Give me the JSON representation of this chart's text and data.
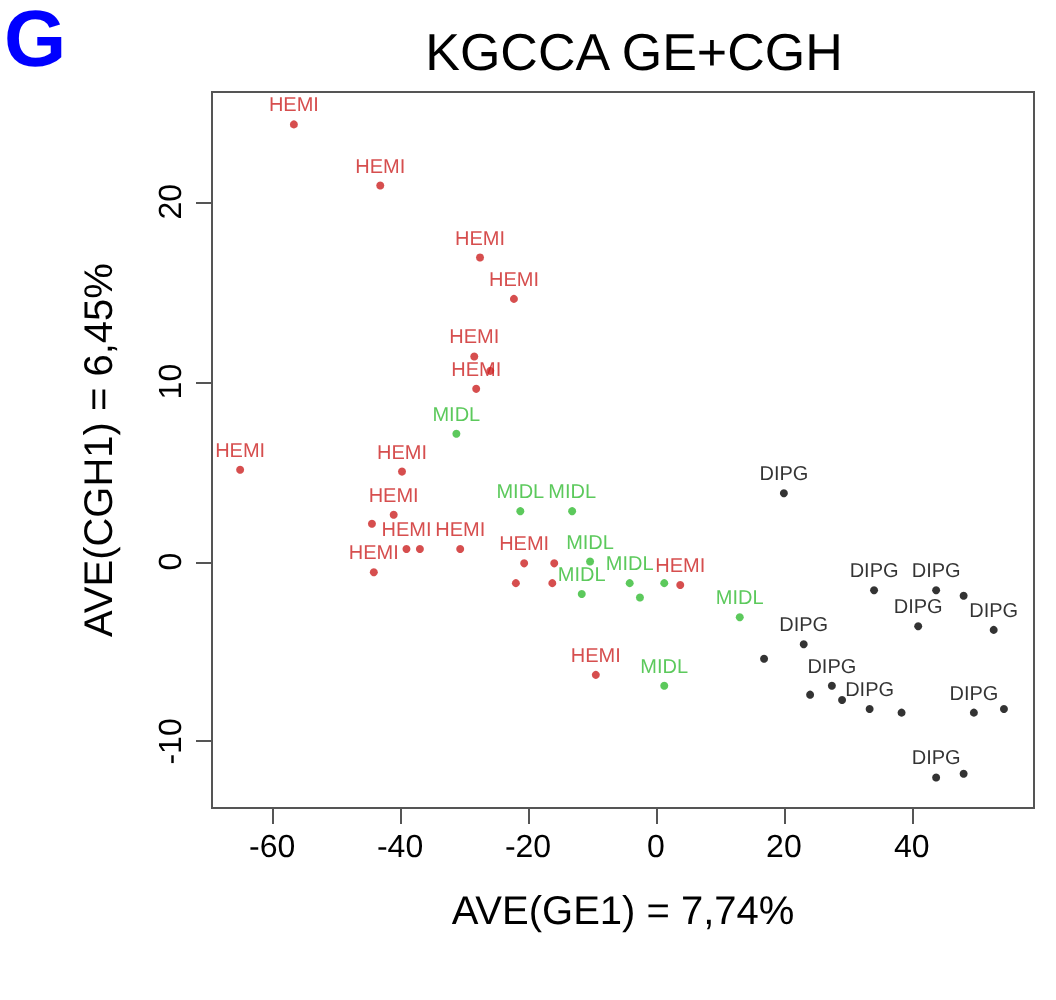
{
  "chart_data": {
    "type": "scatter",
    "title": "KGCCA GE+CGH",
    "xlabel": "AVE(GE1) = 7,74%",
    "ylabel": "AVE(CGH1) = 6,45%",
    "annotations": [
      "G"
    ],
    "xlim": [
      -69.4,
      59.1
    ],
    "xticks": [
      -60,
      -40,
      -20,
      0,
      20,
      40
    ],
    "ylim": [
      -13.7,
      26.1
    ],
    "yticks": [
      -10,
      0,
      10,
      20
    ],
    "grid": false,
    "legend": false,
    "marker": "circle",
    "series": [
      {
        "name": "HEMI",
        "color": "#cc2222",
        "x": [
          -56.6,
          -43.1,
          -27.5,
          -22.2,
          -28.4,
          -25.9,
          -28.1,
          -65,
          -39.7,
          -41,
          -44.4,
          -39,
          -36.9,
          -30.6,
          -44.1,
          -20.6,
          -15.9,
          -21.9,
          -16.2,
          3.8,
          -9.4
        ],
        "values": [
          24.3,
          20.9,
          16.9,
          14.6,
          11.4,
          10.6,
          9.6,
          5.1,
          5,
          2.6,
          2.1,
          0.7,
          0.7,
          0.7,
          -0.6,
          -0.1,
          -0.1,
          -1.2,
          -1.2,
          -1.3,
          -6.3
        ]
      },
      {
        "name": "MIDL",
        "color": "#33bb33",
        "x": [
          -31.2,
          -21.2,
          -13.1,
          -10.3,
          -11.6,
          -4.1,
          1.3,
          -2.5,
          1.3,
          13.1
        ],
        "values": [
          7.1,
          2.8,
          2.8,
          0,
          -1.8,
          -1.2,
          -1.2,
          -2,
          -6.9,
          -3.1
        ]
      },
      {
        "name": "DIPG",
        "color": "#000000",
        "x": [
          20,
          34.1,
          43.8,
          48.1,
          41,
          52.8,
          23.1,
          16.9,
          27.5,
          24.1,
          29.1,
          33.4,
          38.4,
          49.7,
          54.4,
          43.8,
          48.1
        ],
        "values": [
          3.8,
          -1.6,
          -1.6,
          -1.9,
          -3.6,
          -3.8,
          -4.6,
          -5.4,
          -6.9,
          -7.4,
          -7.7,
          -8.2,
          -8.4,
          -8.4,
          -8.2,
          -12,
          -11.8
        ]
      }
    ]
  }
}
